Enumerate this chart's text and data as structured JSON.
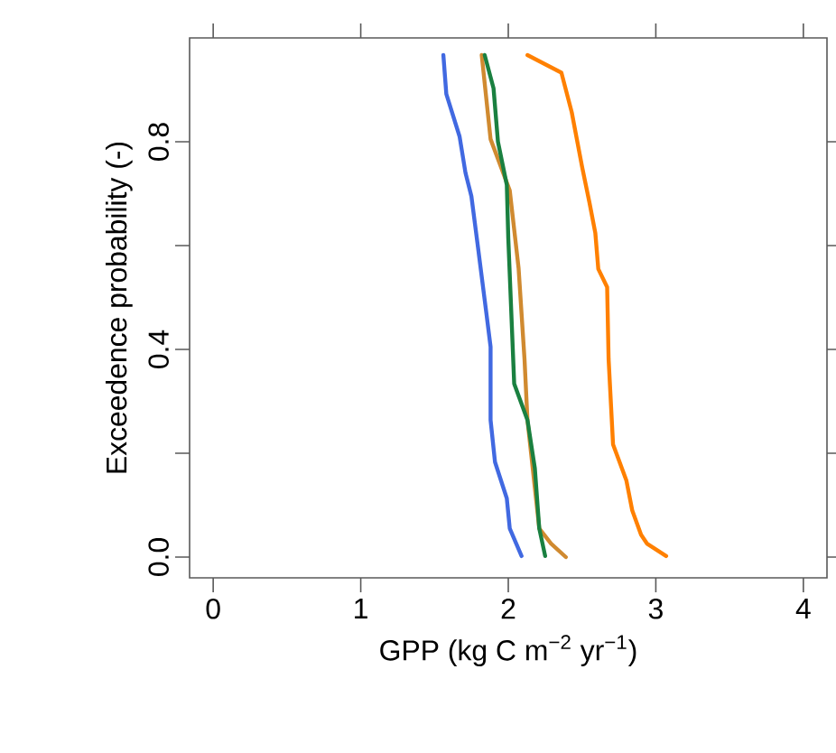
{
  "chart_data": {
    "type": "line",
    "xlabel": "GPP (kg C m$^{−2}$ yr$^{−1}$)",
    "ylabel": "Exceedence probability (-)",
    "xlim": [
      -0.16,
      4.16
    ],
    "ylim": [
      -0.04,
      1.0
    ],
    "xticks": [
      0,
      1,
      2,
      3,
      4
    ],
    "yticks": [
      {
        "value": 0,
        "label": "0.0"
      },
      {
        "value": 0.2,
        "label": null
      },
      {
        "value": 0.4,
        "label": "0.4"
      },
      {
        "value": 0.6,
        "label": null
      },
      {
        "value": 0.8,
        "label": "0.8"
      }
    ],
    "marker": "none",
    "line_style": "solid",
    "series": [
      {
        "color": "#d08a30",
        "x": [
          1.82,
          1.88,
          2.01,
          2.07,
          2.11,
          2.13,
          2.21,
          2.29,
          2.39
        ],
        "values": [
          0.967,
          0.805,
          0.706,
          0.556,
          0.381,
          0.264,
          0.055,
          0.026,
          0.0
        ]
      },
      {
        "color": "#4169e1",
        "x": [
          1.56,
          1.58,
          1.67,
          1.71,
          1.75,
          1.79,
          1.85,
          1.88,
          1.88,
          1.91,
          1.99,
          2.01,
          2.09
        ],
        "values": [
          0.967,
          0.892,
          0.81,
          0.74,
          0.695,
          0.607,
          0.473,
          0.405,
          0.264,
          0.183,
          0.113,
          0.055,
          0.002
        ]
      },
      {
        "color": "#1a8040",
        "x": [
          1.84,
          1.9,
          1.93,
          1.99,
          2.0,
          2.02,
          2.04,
          2.13,
          2.18,
          2.21,
          2.25
        ],
        "values": [
          0.967,
          0.903,
          0.8,
          0.717,
          0.614,
          0.474,
          0.334,
          0.264,
          0.171,
          0.055,
          0.002
        ]
      },
      {
        "color": "#ff8000",
        "x": [
          2.13,
          2.36,
          2.43,
          2.5,
          2.55,
          2.59,
          2.61,
          2.67,
          2.68,
          2.71,
          2.8,
          2.84,
          2.9,
          2.94,
          3.07
        ],
        "values": [
          0.967,
          0.933,
          0.857,
          0.752,
          0.683,
          0.624,
          0.555,
          0.52,
          0.381,
          0.217,
          0.148,
          0.09,
          0.043,
          0.026,
          0.002
        ]
      }
    ]
  }
}
